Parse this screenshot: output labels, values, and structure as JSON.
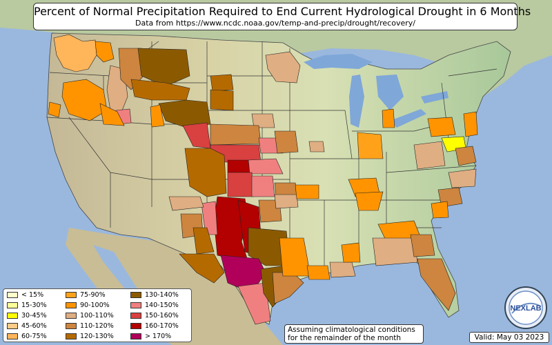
{
  "title": "Percent of Normal Precipitation Required to End Current Hydrological Drought in 6 Months",
  "subtitle": "Data from https://www.ncdc.noaa.gov/temp-and-precip/drought/recovery/",
  "legend": [
    {
      "label": "< 15%",
      "color": "#ffffcc"
    },
    {
      "label": "15-30%",
      "color": "#ffff99"
    },
    {
      "label": "30-45%",
      "color": "#ffff00"
    },
    {
      "label": "45-60%",
      "color": "#ffcc88"
    },
    {
      "label": "60-75%",
      "color": "#ffb55a"
    },
    {
      "label": "75-90%",
      "color": "#ffa21a"
    },
    {
      "label": "90-100%",
      "color": "#ff9400"
    },
    {
      "label": "100-110%",
      "color": "#dfae82"
    },
    {
      "label": "110-120%",
      "color": "#cd853f"
    },
    {
      "label": "120-130%",
      "color": "#b56a00"
    },
    {
      "label": "130-140%",
      "color": "#8b5a00"
    },
    {
      "label": "140-150%",
      "color": "#f08080"
    },
    {
      "label": "150-160%",
      "color": "#d94040"
    },
    {
      "label": "160-170%",
      "color": "#b30000"
    },
    {
      "label": "> 170%",
      "color": "#b0005a"
    }
  ],
  "note": "Assuming climatological conditions for the remainder of the month",
  "valid": "Valid: May 03 2023",
  "logo_text": "NEXLAB",
  "colors": {
    "ocean": "#9ab8de",
    "land": "#d7dcae",
    "lakes": "#7fa7d8",
    "border": "#222222"
  }
}
